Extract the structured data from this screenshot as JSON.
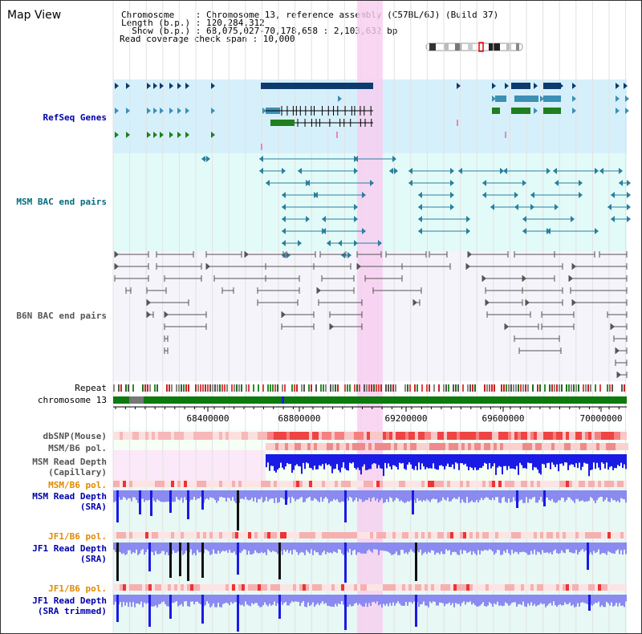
{
  "header": {
    "title": "Map View",
    "chromosome_label": "Chromosome    : Chromosome 13, reference assembly (C57BL/6J) (Build 37)",
    "length_label": "Length (b.p.) : 120,284,312",
    "show_label": "  Show (b.p.) : 68,075,027-70,178,658 : 2,103,632 bp",
    "coverage_label": "Read coverage check span : 10,000"
  },
  "tracks": {
    "refseq": "RefSeq Genes",
    "msm_bac": "MSM BAC end pairs",
    "b6n_bac": "B6N BAC end pairs",
    "repeat": "Repeat",
    "chromosome": "chromosome 13",
    "dbsnp": "dbSNP(Mouse)",
    "msm_b6_pol_top": "MSM/B6 pol.",
    "msm_read_depth_cap_1": "MSM Read Depth",
    "msm_read_depth_cap_2": "(Capillary)",
    "msm_b6_pol": "MSM/B6 pol.",
    "msm_read_depth_sra_1": "MSM Read Depth",
    "msm_read_depth_sra_2": "(SRA)",
    "jf1_b6_pol": "JF1/B6 pol.",
    "jf1_read_depth_sra_1": "JF1 Read Depth",
    "jf1_read_depth_sra_2": "(SRA)",
    "jf1_b6_pol_2": "JF1/B6 pol.",
    "jf1_read_depth_trim_1": "JF1 Read Depth",
    "jf1_read_depth_trim_2": "(SRA trimmed)"
  },
  "axis": {
    "ticks": [
      "68400000",
      "68800000",
      "69200000",
      "69600000",
      "70000000"
    ]
  },
  "colors": {
    "refseq_bg": "#d6f0fb",
    "bac_bg": "#e3fbf8",
    "highlight": "#f7d4f1",
    "refseq_dark": "#0d3b6e",
    "refseq_mid": "#3d8fb5",
    "refseq_green": "#1f7f1f",
    "msm_bac": "#2a7f9e",
    "b6n_bac": "#555555",
    "chromosome_green": "#0d7a0d",
    "depth_blue": "#1a1ae6",
    "depth_light": "#8a8af0",
    "label_blue": "#0000aa",
    "label_teal": "#006c80",
    "label_orange": "#e08a00",
    "label_gray": "#555555"
  }
}
